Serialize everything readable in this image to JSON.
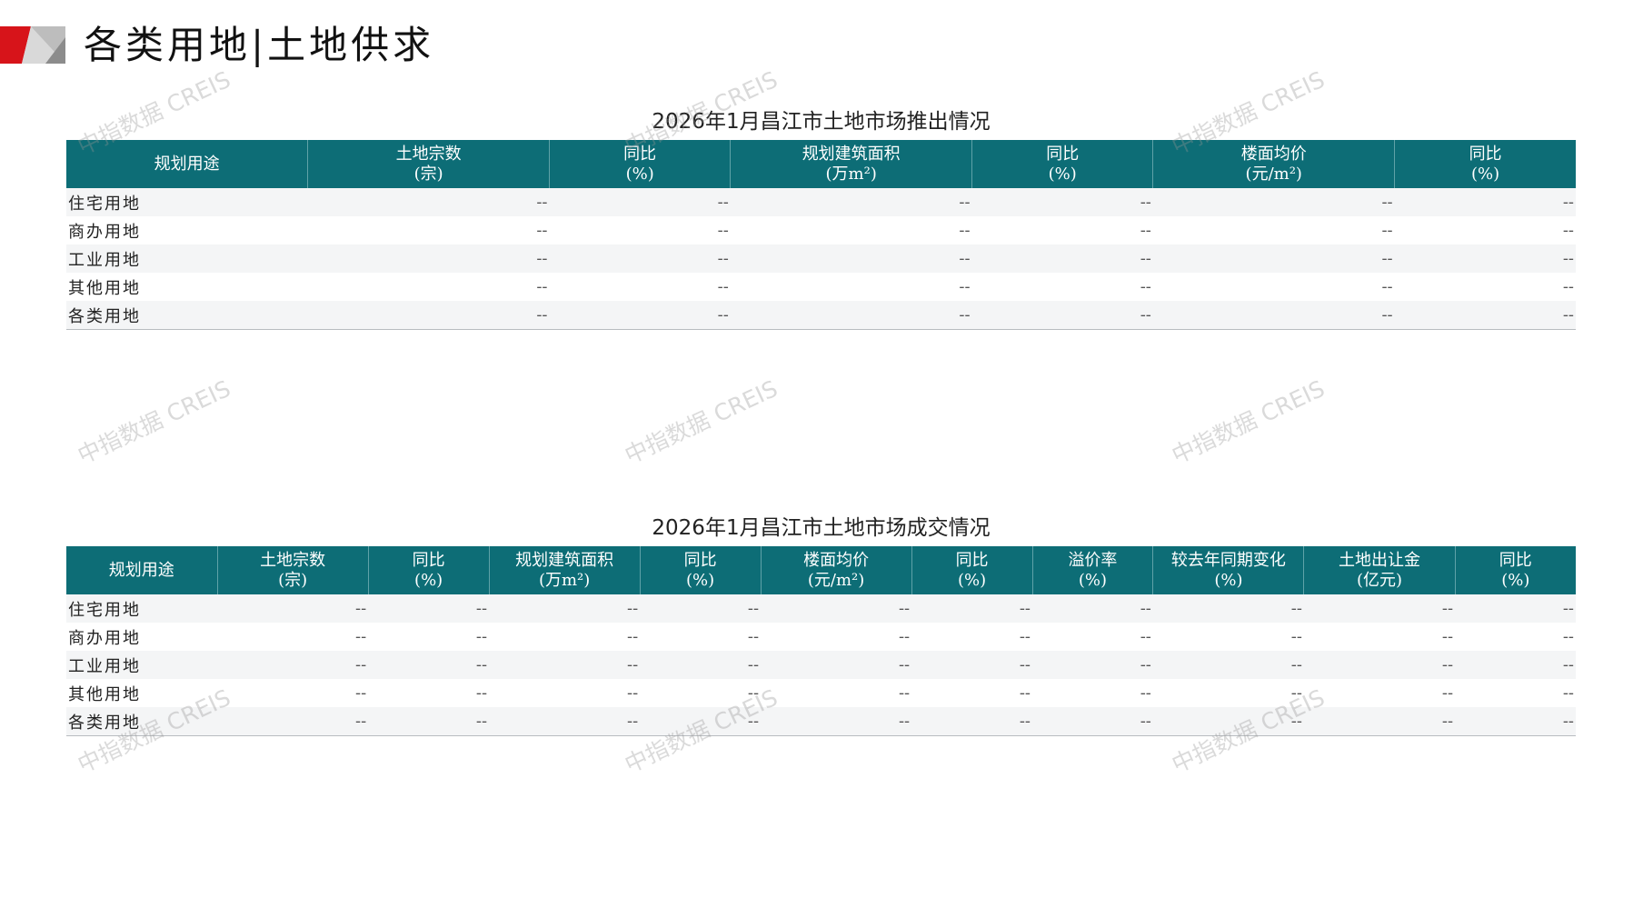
{
  "header": {
    "title": "各类用地|土地供求"
  },
  "watermark": "中指数据 CREIS",
  "supply": {
    "title": "2026年1月昌江市土地市场推出情况",
    "columns": [
      [
        "规划用途",
        ""
      ],
      [
        "土地宗数",
        "(宗)"
      ],
      [
        "同比",
        "(%)"
      ],
      [
        "规划建筑面积",
        "(万m²)"
      ],
      [
        "同比",
        "(%)"
      ],
      [
        "楼面均价",
        "(元/m²)"
      ],
      [
        "同比",
        "(%)"
      ]
    ],
    "rows": [
      [
        "住宅用地",
        "--",
        "--",
        "--",
        "--",
        "--",
        "--"
      ],
      [
        "商办用地",
        "--",
        "--",
        "--",
        "--",
        "--",
        "--"
      ],
      [
        "工业用地",
        "--",
        "--",
        "--",
        "--",
        "--",
        "--"
      ],
      [
        "其他用地",
        "--",
        "--",
        "--",
        "--",
        "--",
        "--"
      ],
      [
        "各类用地",
        "--",
        "--",
        "--",
        "--",
        "--",
        "--"
      ]
    ]
  },
  "deal": {
    "title": "2026年1月昌江市土地市场成交情况",
    "columns": [
      [
        "规划用途",
        ""
      ],
      [
        "土地宗数",
        "(宗)"
      ],
      [
        "同比",
        "(%)"
      ],
      [
        "规划建筑面积",
        "(万m²)"
      ],
      [
        "同比",
        "(%)"
      ],
      [
        "楼面均价",
        "(元/m²)"
      ],
      [
        "同比",
        "(%)"
      ],
      [
        "溢价率",
        "(%)"
      ],
      [
        "较去年同期变化",
        "(%)"
      ],
      [
        "土地出让金",
        "(亿元)"
      ],
      [
        "同比",
        "(%)"
      ]
    ],
    "rows": [
      [
        "住宅用地",
        "--",
        "--",
        "--",
        "--",
        "--",
        "--",
        "--",
        "--",
        "--",
        "--"
      ],
      [
        "商办用地",
        "--",
        "--",
        "--",
        "--",
        "--",
        "--",
        "--",
        "--",
        "--",
        "--"
      ],
      [
        "工业用地",
        "--",
        "--",
        "--",
        "--",
        "--",
        "--",
        "--",
        "--",
        "--",
        "--"
      ],
      [
        "其他用地",
        "--",
        "--",
        "--",
        "--",
        "--",
        "--",
        "--",
        "--",
        "--",
        "--"
      ],
      [
        "各类用地",
        "--",
        "--",
        "--",
        "--",
        "--",
        "--",
        "--",
        "--",
        "--",
        "--"
      ]
    ]
  },
  "colors": {
    "header_bg": "#0d6d76",
    "logo_red": "#d7141a",
    "row_alt": "#f4f5f6"
  }
}
